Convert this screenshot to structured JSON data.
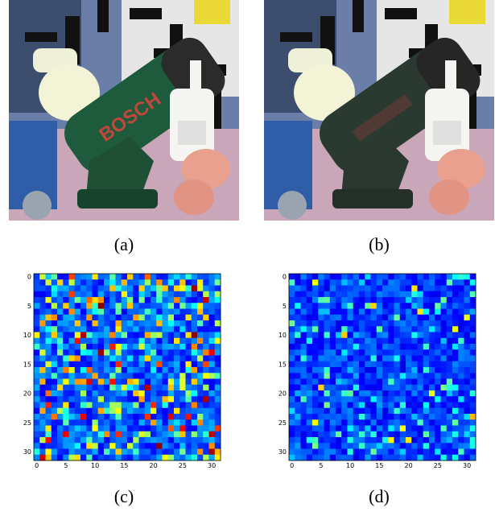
{
  "figure": {
    "captions": {
      "a": "(a)",
      "b": "(b)",
      "c": "(c)",
      "d": "(d)"
    },
    "photo_a": {
      "object_text": "BOSCH"
    },
    "photo_b": {
      "object_text": ""
    }
  },
  "chart_data": [
    {
      "type": "heatmap",
      "panel": "c",
      "colormap": "jet",
      "rows": 32,
      "cols": 32,
      "xticks": [
        "0",
        "5",
        "10",
        "15",
        "20",
        "25",
        "30"
      ],
      "yticks": [
        "0",
        "5",
        "10",
        "15",
        "20",
        "25",
        "30"
      ],
      "xlim": [
        0,
        31
      ],
      "ylim": [
        31,
        0
      ],
      "value_range": [
        0,
        1
      ],
      "seed": 7,
      "level": "high"
    },
    {
      "type": "heatmap",
      "panel": "d",
      "colormap": "jet",
      "rows": 32,
      "cols": 32,
      "xticks": [
        "0",
        "5",
        "10",
        "15",
        "20",
        "25",
        "30"
      ],
      "yticks": [
        "0",
        "5",
        "10",
        "15",
        "20",
        "25",
        "30"
      ],
      "xlim": [
        0,
        31
      ],
      "ylim": [
        31,
        0
      ],
      "value_range": [
        0,
        1
      ],
      "seed": 19,
      "level": "low"
    }
  ]
}
